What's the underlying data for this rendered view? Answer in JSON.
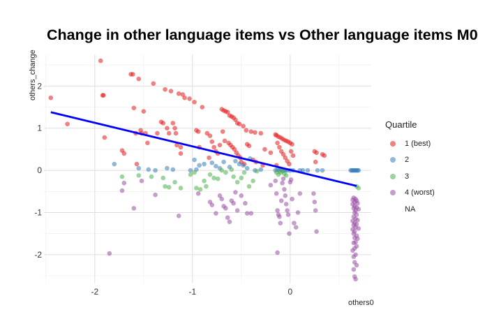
{
  "chart_data": {
    "type": "scatter",
    "title": "Change in other language items vs Other language items M0",
    "xlabel": "others0",
    "ylabel": "others_change",
    "xlim": [
      -2.52,
      0.83
    ],
    "ylim": [
      -2.68,
      2.75
    ],
    "x_ticks": [
      -2,
      -1,
      0
    ],
    "x_tick_labels": [
      "-2",
      "-1",
      "0"
    ],
    "y_ticks": [
      -2,
      -1,
      0,
      1,
      2
    ],
    "y_tick_labels": [
      "-2",
      "-1",
      "0",
      "1",
      "2"
    ],
    "grid": true,
    "legend": {
      "title": "Quartile",
      "placement": "right",
      "entries": [
        {
          "label": "1 (best)",
          "color": "#E41A1C"
        },
        {
          "label": "2",
          "color": "#377EB8"
        },
        {
          "label": "3",
          "color": "#4DAF4A"
        },
        {
          "label": "4 (worst)",
          "color": "#984EA3"
        },
        {
          "label": "NA",
          "color": ""
        }
      ]
    },
    "trend_line": {
      "color": "#0000FF",
      "x": [
        -2.45,
        0.68
      ],
      "y": [
        1.38,
        -0.37
      ]
    },
    "series": [
      {
        "name": "1 (best)",
        "color": "#E41A1C",
        "points": [
          [
            -2.45,
            1.72
          ],
          [
            -2.28,
            1.1
          ],
          [
            -1.94,
            2.6
          ],
          [
            -1.92,
            1.78
          ],
          [
            -1.91,
            1.78
          ],
          [
            -1.9,
            0.78
          ],
          [
            -1.72,
            0.47
          ],
          [
            -1.7,
            0.4
          ],
          [
            -1.63,
            2.28
          ],
          [
            -1.61,
            2.28
          ],
          [
            -1.6,
            1.48
          ],
          [
            -1.58,
            0.88
          ],
          [
            -1.57,
            0.15
          ],
          [
            -1.55,
            2.17
          ],
          [
            -1.53,
            0.95
          ],
          [
            -1.52,
            0.88
          ],
          [
            -1.5,
            1.4
          ],
          [
            -1.48,
            0.88
          ],
          [
            -1.46,
            0.65
          ],
          [
            -1.4,
            2.06
          ],
          [
            -1.36,
            0.88
          ],
          [
            -1.32,
            1.15
          ],
          [
            -1.3,
            1.12
          ],
          [
            -1.28,
            1.92
          ],
          [
            -1.26,
            1.0
          ],
          [
            -1.24,
            0.88
          ],
          [
            -1.22,
            1.88
          ],
          [
            -1.2,
            1.12
          ],
          [
            -1.18,
            1.0
          ],
          [
            -1.17,
            0.88
          ],
          [
            -1.16,
            0.6
          ],
          [
            -1.14,
            1.82
          ],
          [
            -1.12,
            0.55
          ],
          [
            -1.1,
            1.8
          ],
          [
            -1.08,
            1.72
          ],
          [
            -1.03,
            1.7
          ],
          [
            -0.98,
            1.62
          ],
          [
            -0.96,
            0.95
          ],
          [
            -0.94,
            0.92
          ],
          [
            -0.9,
            1.5
          ],
          [
            -0.85,
            0.88
          ],
          [
            -0.82,
            0.82
          ],
          [
            -0.8,
            0.68
          ],
          [
            -0.78,
            0.55
          ],
          [
            -0.76,
            0.45
          ],
          [
            -0.74,
            0.4
          ],
          [
            -0.72,
            0.6
          ],
          [
            -0.7,
            1.45
          ],
          [
            -0.68,
            1.42
          ],
          [
            -0.66,
            1.4
          ],
          [
            -0.64,
            1.38
          ],
          [
            -0.62,
            1.3
          ],
          [
            -0.6,
            1.28
          ],
          [
            -0.58,
            1.25
          ],
          [
            -0.56,
            1.2
          ],
          [
            -0.54,
            1.12
          ],
          [
            -0.52,
            1.1
          ],
          [
            -0.48,
            1.05
          ],
          [
            -0.45,
            0.95
          ],
          [
            -0.4,
            0.92
          ],
          [
            -0.36,
            0.9
          ],
          [
            -0.3,
            0.88
          ],
          [
            -0.69,
            0.92
          ],
          [
            -0.67,
            0.7
          ],
          [
            -0.63,
            0.65
          ],
          [
            -0.61,
            0.6
          ],
          [
            -0.59,
            0.55
          ],
          [
            -0.57,
            0.5
          ],
          [
            -0.55,
            0.42
          ],
          [
            -0.53,
            0.35
          ],
          [
            -0.51,
            0.3
          ],
          [
            -0.5,
            0.2
          ],
          [
            -0.47,
            0.15
          ],
          [
            -0.44,
            0.62
          ],
          [
            -0.42,
            0.58
          ],
          [
            -0.38,
            0.25
          ],
          [
            -0.35,
            0.2
          ],
          [
            -0.28,
            0.12
          ],
          [
            -0.26,
            0.5
          ],
          [
            -0.2,
            0.42
          ],
          [
            -0.15,
            0.85
          ],
          [
            -0.14,
            0.83
          ],
          [
            -0.12,
            0.8
          ],
          [
            -0.1,
            0.78
          ],
          [
            -0.08,
            0.75
          ],
          [
            -0.06,
            0.72
          ],
          [
            -0.04,
            0.7
          ],
          [
            -0.02,
            0.68
          ],
          [
            0.0,
            0.65
          ],
          [
            0.02,
            0.62
          ],
          [
            -0.13,
            0.65
          ],
          [
            -0.11,
            0.55
          ],
          [
            -0.09,
            0.45
          ],
          [
            -0.07,
            0.38
          ],
          [
            -0.05,
            0.3
          ],
          [
            -0.03,
            0.22
          ],
          [
            -0.01,
            0.15
          ],
          [
            -0.14,
            0.12
          ],
          [
            0.01,
            0.45
          ],
          [
            0.03,
            0.35
          ],
          [
            0.25,
            0.45
          ],
          [
            0.27,
            0.42
          ],
          [
            0.33,
            0.38
          ],
          [
            0.35,
            0.35
          ],
          [
            0.26,
            0.2
          ],
          [
            -1.12,
            0.4
          ],
          [
            -0.93,
            0.55
          ],
          [
            -0.83,
            0.3
          ]
        ]
      },
      {
        "name": "2",
        "color": "#377EB8",
        "points": [
          [
            -1.8,
            0.15
          ],
          [
            -1.55,
            0.05
          ],
          [
            -1.45,
            0.02
          ],
          [
            -1.38,
            0.0
          ],
          [
            -1.26,
            0.05
          ],
          [
            -1.2,
            0.02
          ],
          [
            -1.02,
            0.0
          ],
          [
            -0.96,
            0.02
          ],
          [
            -0.93,
            0.12
          ],
          [
            -0.88,
            0.15
          ],
          [
            -0.8,
            0.18
          ],
          [
            -0.76,
            0.1
          ],
          [
            -0.72,
            0.05
          ],
          [
            -0.68,
            0.2
          ],
          [
            -0.62,
            0.08
          ],
          [
            -0.56,
            0.22
          ],
          [
            -0.48,
            0.12
          ],
          [
            -0.44,
            0.05
          ],
          [
            -0.36,
            0.0
          ],
          [
            -0.3,
            0.02
          ],
          [
            -0.15,
            0.0
          ],
          [
            -0.13,
            0.02
          ],
          [
            -0.11,
            0.0
          ],
          [
            -0.09,
            0.02
          ],
          [
            -0.07,
            0.0
          ],
          [
            -0.05,
            0.0
          ],
          [
            -0.03,
            0.0
          ],
          [
            0.0,
            0.0
          ],
          [
            0.03,
            0.0
          ],
          [
            0.1,
            0.0
          ],
          [
            0.13,
            0.0
          ],
          [
            0.18,
            0.0
          ],
          [
            0.28,
            0.0
          ],
          [
            0.33,
            0.0
          ],
          [
            0.62,
            0.0
          ],
          [
            0.63,
            0.0
          ],
          [
            0.64,
            0.0
          ],
          [
            0.65,
            0.0
          ],
          [
            0.66,
            0.0
          ],
          [
            0.67,
            0.0
          ],
          [
            0.68,
            0.0
          ],
          [
            0.69,
            0.0
          ],
          [
            0.7,
            0.0
          ],
          [
            -0.98,
            0.25
          ],
          [
            -0.52,
            0.15
          ],
          [
            -0.41,
            0.28
          ]
        ]
      },
      {
        "name": "3",
        "color": "#4DAF4A",
        "points": [
          [
            -1.72,
            -0.15
          ],
          [
            -1.55,
            -0.12
          ],
          [
            -1.42,
            -0.15
          ],
          [
            -1.3,
            -0.18
          ],
          [
            -1.28,
            -0.38
          ],
          [
            -1.24,
            -0.4
          ],
          [
            -1.18,
            -0.28
          ],
          [
            -1.12,
            -0.42
          ],
          [
            -1.02,
            -0.1
          ],
          [
            -0.98,
            -0.05
          ],
          [
            -0.96,
            -0.42
          ],
          [
            -0.92,
            -0.45
          ],
          [
            -0.86,
            -0.38
          ],
          [
            -0.82,
            -0.1
          ],
          [
            -0.78,
            -0.18
          ],
          [
            -0.74,
            -0.2
          ],
          [
            -0.7,
            0.0
          ],
          [
            -0.66,
            -0.05
          ],
          [
            -0.6,
            0.02
          ],
          [
            -0.58,
            -0.15
          ],
          [
            -0.54,
            -0.28
          ],
          [
            -0.5,
            -0.18
          ],
          [
            -0.47,
            -0.05
          ],
          [
            -0.42,
            -0.38
          ],
          [
            -0.38,
            -0.25
          ],
          [
            -0.34,
            -0.02
          ],
          [
            -0.14,
            -0.05
          ],
          [
            -0.12,
            -0.1
          ],
          [
            -0.1,
            -0.05
          ],
          [
            -0.08,
            -0.02
          ],
          [
            -0.06,
            -0.08
          ],
          [
            -0.04,
            -0.12
          ],
          [
            0.68,
            -0.38
          ],
          [
            0.7,
            -0.42
          ],
          [
            -0.88,
            -0.25
          ]
        ]
      },
      {
        "name": "4 (worst)",
        "color": "#984EA3",
        "points": [
          [
            -1.85,
            -1.97
          ],
          [
            -1.72,
            -0.48
          ],
          [
            -1.6,
            -0.9
          ],
          [
            -1.52,
            -0.25
          ],
          [
            -1.38,
            -0.58
          ],
          [
            -1.14,
            -1.08
          ],
          [
            -0.94,
            -0.55
          ],
          [
            -0.82,
            -0.75
          ],
          [
            -0.8,
            -0.82
          ],
          [
            -0.76,
            -1.02
          ],
          [
            -0.72,
            -0.6
          ],
          [
            -0.7,
            -0.68
          ],
          [
            -0.68,
            -0.85
          ],
          [
            -0.66,
            -0.9
          ],
          [
            -0.64,
            -1.12
          ],
          [
            -0.62,
            -1.22
          ],
          [
            -0.6,
            -0.72
          ],
          [
            -0.58,
            -0.78
          ],
          [
            -0.56,
            -0.52
          ],
          [
            -0.54,
            -0.95
          ],
          [
            -0.5,
            -0.6
          ],
          [
            -0.46,
            -0.78
          ],
          [
            -0.44,
            -1.02
          ],
          [
            -0.4,
            -1.02
          ],
          [
            -0.2,
            -0.35
          ],
          [
            -0.15,
            -0.25
          ],
          [
            -0.14,
            -0.55
          ],
          [
            -0.13,
            -0.95
          ],
          [
            -0.12,
            -1.05
          ],
          [
            -0.11,
            -1.1
          ],
          [
            -0.1,
            -1.25
          ],
          [
            -0.09,
            -0.72
          ],
          [
            -0.08,
            -0.3
          ],
          [
            -0.07,
            -0.2
          ],
          [
            -0.06,
            -0.45
          ],
          [
            -0.05,
            -0.6
          ],
          [
            -0.04,
            -0.8
          ],
          [
            -0.03,
            -0.95
          ],
          [
            -0.02,
            -1.05
          ],
          [
            -0.01,
            -1.5
          ],
          [
            0.0,
            -0.28
          ],
          [
            0.01,
            -0.22
          ],
          [
            0.02,
            -0.68
          ],
          [
            0.04,
            -1.25
          ],
          [
            0.06,
            -1.35
          ],
          [
            0.08,
            -1.0
          ],
          [
            0.1,
            -0.55
          ],
          [
            0.24,
            -0.55
          ],
          [
            0.25,
            -0.75
          ],
          [
            0.26,
            -0.95
          ],
          [
            0.27,
            -1.45
          ],
          [
            0.64,
            -0.7
          ],
          [
            0.64,
            -0.8
          ],
          [
            0.64,
            -1.2
          ],
          [
            0.64,
            -1.4
          ],
          [
            0.64,
            -1.9
          ],
          [
            0.65,
            -0.65
          ],
          [
            0.65,
            -0.9
          ],
          [
            0.65,
            -1.1
          ],
          [
            0.65,
            -1.3
          ],
          [
            0.65,
            -1.5
          ],
          [
            0.65,
            -1.72
          ],
          [
            0.65,
            -2.05
          ],
          [
            0.65,
            -2.35
          ],
          [
            0.66,
            -0.75
          ],
          [
            0.66,
            -0.85
          ],
          [
            0.66,
            -1.0
          ],
          [
            0.66,
            -1.25
          ],
          [
            0.66,
            -1.45
          ],
          [
            0.66,
            -1.6
          ],
          [
            0.66,
            -1.85
          ],
          [
            0.66,
            -2.18
          ],
          [
            0.66,
            -2.52
          ],
          [
            0.67,
            -0.68
          ],
          [
            0.67,
            -0.95
          ],
          [
            0.67,
            -1.15
          ],
          [
            0.67,
            -1.35
          ],
          [
            0.67,
            -1.7
          ],
          [
            0.67,
            -2.0
          ],
          [
            0.67,
            -2.58
          ],
          [
            0.68,
            -0.72
          ],
          [
            0.68,
            -0.88
          ],
          [
            0.68,
            -1.05
          ],
          [
            0.68,
            -1.28
          ],
          [
            0.68,
            -1.55
          ],
          [
            0.68,
            -1.8
          ],
          [
            0.68,
            -2.25
          ],
          [
            0.69,
            -0.78
          ],
          [
            0.69,
            -1.18
          ],
          [
            0.69,
            -1.62
          ],
          [
            0.7,
            -0.92
          ],
          [
            0.7,
            -1.38
          ],
          [
            -0.13,
            -1.95
          ],
          [
            -1.7,
            -0.3
          ]
        ]
      }
    ]
  }
}
